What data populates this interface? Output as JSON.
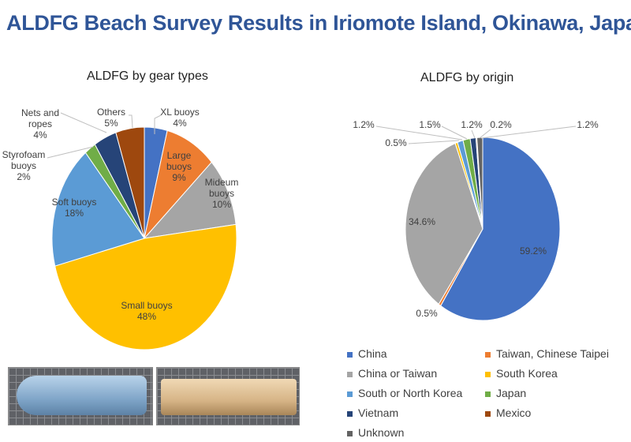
{
  "title": "ALDFG Beach Survey Results in Iriomote Island, Okinawa, Japan",
  "chart_data": [
    {
      "type": "pie",
      "title": "ALDFG by gear types",
      "start": "top-clockwise",
      "slices": [
        {
          "label": "XL buoys",
          "value": 4,
          "display": "4%",
          "color": "#4472c4"
        },
        {
          "label": "Large buoys",
          "value": 9,
          "display": "9%",
          "color": "#ed7d31"
        },
        {
          "label": "Mideum buoys",
          "value": 10,
          "display": "10%",
          "color": "#a5a5a5"
        },
        {
          "label": "Small buoys",
          "value": 48,
          "display": "48%",
          "color": "#ffc000"
        },
        {
          "label": "Soft buoys",
          "value": 18,
          "display": "18%",
          "color": "#5b9bd5"
        },
        {
          "label": "Styrofoam buoys",
          "value": 2,
          "display": "2%",
          "color": "#70ad47"
        },
        {
          "label": "Nets and ropes",
          "value": 4,
          "display": "4%",
          "color": "#264478"
        },
        {
          "label": "Others",
          "value": 5,
          "display": "5%",
          "color": "#9e480e"
        }
      ]
    },
    {
      "type": "pie",
      "title": "ALDFG by origin",
      "start": "top-clockwise",
      "legend": "bottom",
      "slices": [
        {
          "label": "China",
          "value": 59.2,
          "display": "59.2%",
          "color": "#4472c4"
        },
        {
          "label": "Taiwan, Chinese Taipei",
          "value": 0.5,
          "display": "0.5%",
          "color": "#ed7d31"
        },
        {
          "label": "China or Taiwan",
          "value": 34.6,
          "display": "34.6%",
          "color": "#a5a5a5"
        },
        {
          "label": "South Korea",
          "value": 0.5,
          "display": "0.5%",
          "color": "#ffc000"
        },
        {
          "label": "South or North Korea",
          "value": 1.2,
          "display": "1.2%",
          "color": "#5b9bd5"
        },
        {
          "label": "Japan",
          "value": 1.5,
          "display": "1.5%",
          "color": "#70ad47"
        },
        {
          "label": "Vietnam",
          "value": 1.2,
          "display": "1.2%",
          "color": "#264478"
        },
        {
          "label": "Mexico",
          "value": 0.2,
          "display": "0.2%",
          "color": "#9e480e"
        },
        {
          "label": "Unknown",
          "value": 1.2,
          "display": "1.2%",
          "color": "#636363"
        }
      ]
    }
  ]
}
